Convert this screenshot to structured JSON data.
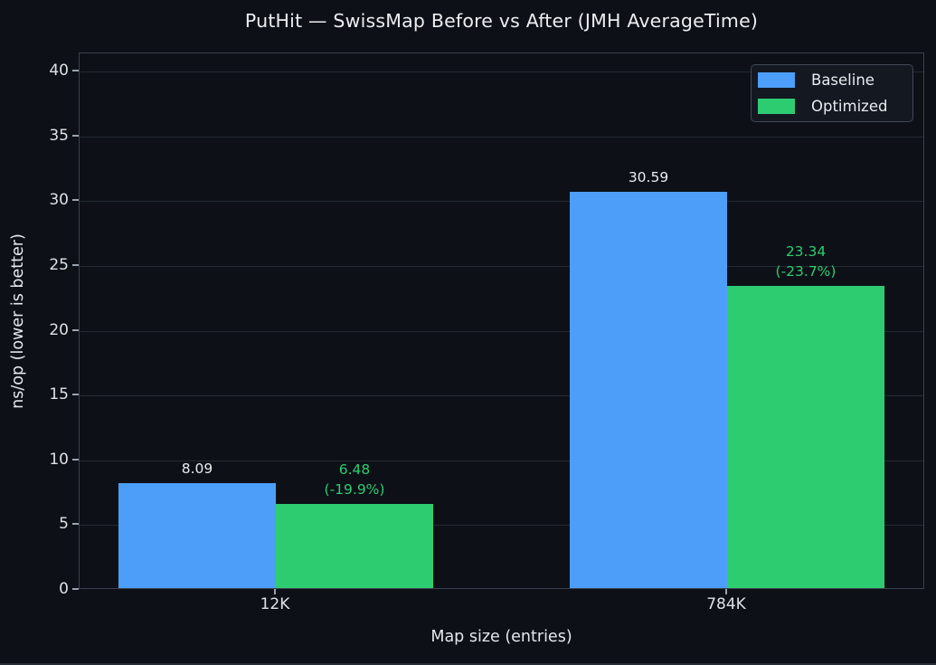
{
  "chart_data": {
    "type": "bar",
    "title": "PutHit — SwissMap Before vs After (JMH AverageTime)",
    "xlabel": "Map size (entries)",
    "ylabel": "ns/op (lower is better)",
    "categories": [
      "12K",
      "784K"
    ],
    "series": [
      {
        "name": "Baseline",
        "color": "#4C9EF8",
        "values": [
          8.09,
          30.59
        ],
        "annotations": [
          [
            "8.09"
          ],
          [
            "30.59"
          ]
        ],
        "annotation_color": "#e9ecef"
      },
      {
        "name": "Optimized",
        "color": "#2ECC71",
        "values": [
          6.48,
          23.34
        ],
        "annotations": [
          [
            "6.48",
            "(-19.9%)"
          ],
          [
            "23.34",
            "(-23.7%)"
          ]
        ],
        "annotation_color": "#2ECC71"
      }
    ],
    "yticks": [
      0,
      5,
      10,
      15,
      20,
      25,
      30,
      35,
      40
    ],
    "ylim": [
      0,
      41.4
    ],
    "grid": true,
    "legend_position": "upper right",
    "colors": {
      "background": "#0d1117",
      "plot_border": "#3a414e",
      "gridline": "#232a34",
      "tick_text": "#dde2e8",
      "title_text": "#eceef1"
    }
  }
}
